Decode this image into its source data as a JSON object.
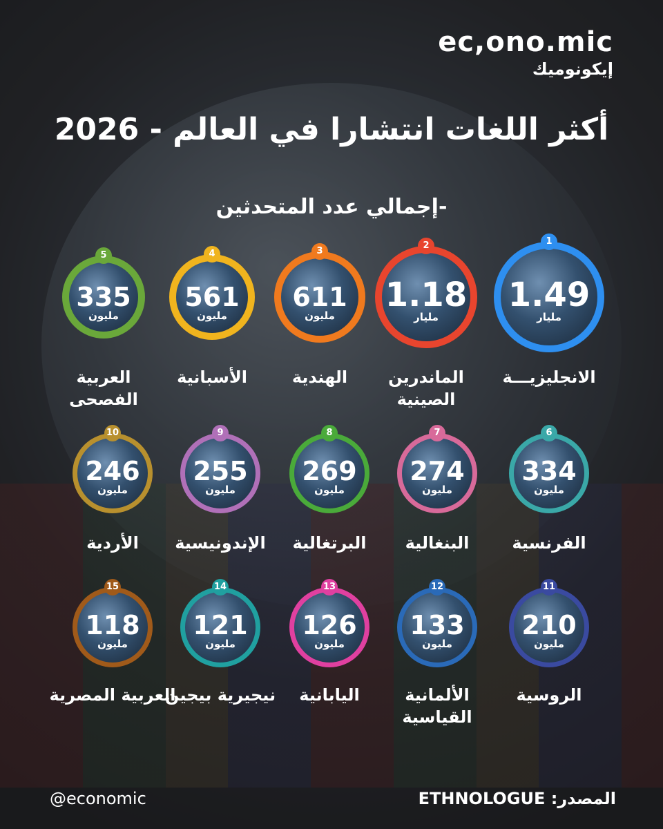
{
  "header": {
    "brand": "ec,ono.mic",
    "brand_ar": "إيكونوميك",
    "title": "أكثر اللغات انتشارا في العالم - 2026",
    "subtitle": "-إجمالي عدد المتحدثين"
  },
  "items": [
    {
      "rank": 1,
      "value": 1.49,
      "unit": "مليار",
      "name": [
        "الانجليزيـــة"
      ],
      "color": "#2e8ff0"
    },
    {
      "rank": 2,
      "value": 1.18,
      "unit": "مليار",
      "name": [
        "الماندرين",
        "الصينية"
      ],
      "color": "#e8452e"
    },
    {
      "rank": 3,
      "value": 611,
      "unit": "مليون",
      "name": [
        "الهندية"
      ],
      "color": "#f07a1e"
    },
    {
      "rank": 4,
      "value": 561,
      "unit": "مليون",
      "name": [
        "الأسبانية"
      ],
      "color": "#f0b41e"
    },
    {
      "rank": 5,
      "value": 335,
      "unit": "مليون",
      "name": [
        "العربية",
        "الفصحى"
      ],
      "color": "#6aa83a"
    },
    {
      "rank": 6,
      "value": 334,
      "unit": "مليون",
      "name": [
        "الفرنسية"
      ],
      "color": "#3aa8a8"
    },
    {
      "rank": 7,
      "value": 274,
      "unit": "مليون",
      "name": [
        "البنغالية"
      ],
      "color": "#d86a9a"
    },
    {
      "rank": 8,
      "value": 269,
      "unit": "مليون",
      "name": [
        "البرتغالية"
      ],
      "color": "#4aaa3a"
    },
    {
      "rank": 9,
      "value": 255,
      "unit": "مليون",
      "name": [
        "الإندونيسية"
      ],
      "color": "#b070b8"
    },
    {
      "rank": 10,
      "value": 246,
      "unit": "مليون",
      "name": [
        "الأردية"
      ],
      "color": "#b8902e"
    },
    {
      "rank": 11,
      "value": 210,
      "unit": "مليون",
      "name": [
        "الروسية"
      ],
      "color": "#3a4aa0"
    },
    {
      "rank": 12,
      "value": 133,
      "unit": "مليون",
      "name": [
        "الألمانية",
        "القياسية"
      ],
      "color": "#2a6ab8"
    },
    {
      "rank": 13,
      "value": 126,
      "unit": "مليون",
      "name": [
        "اليابانية"
      ],
      "color": "#e040a0"
    },
    {
      "rank": 14,
      "value": 121,
      "unit": "مليون",
      "name": [
        "نيجيرية بيجين"
      ],
      "color": "#20a0a0"
    },
    {
      "rank": 15,
      "value": 118,
      "unit": "مليون",
      "name": [
        "العربية المصرية"
      ],
      "color": "#a05a1a"
    }
  ],
  "footer": {
    "source_label": "المصدر:",
    "source": "ETHNOLOGUE",
    "handle": "@economic"
  }
}
